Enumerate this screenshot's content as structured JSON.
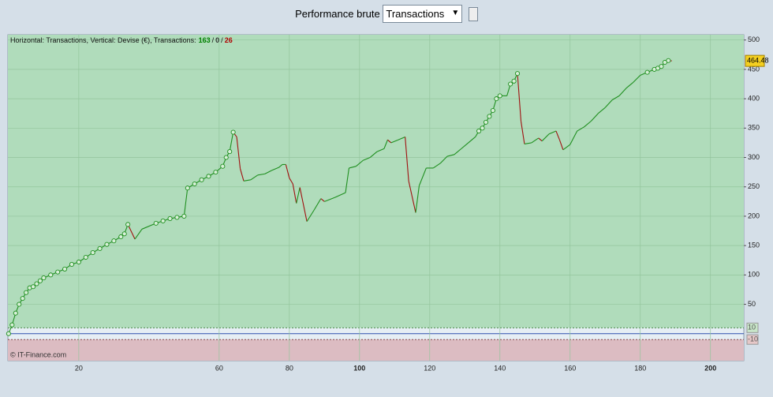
{
  "ui": {
    "label": "Performance brute",
    "select": "Transactions"
  },
  "chart_data": {
    "type": "line",
    "info_text": "Horizontal: Transactions, Vertical: Devise (€), Transactions:",
    "count_separator": "/",
    "counts": [
      {
        "value": 163,
        "color": "#008000"
      },
      {
        "value": 0,
        "color": "#333333"
      },
      {
        "value": 26,
        "color": "#b00000"
      }
    ],
    "credit": "© IT-Finance.com",
    "upper_band": 10,
    "lower_band": -10,
    "band_colors": {
      "upper": "#b0dcbb",
      "lower": "#dcbcc2",
      "middle": "#e6eef4"
    },
    "up_color": "#1f8f1f",
    "down_color": "#a01010",
    "xlim": [
      -0.2,
      209.5
    ],
    "ylim": [
      -46,
      509
    ],
    "xticks": [
      20,
      60,
      80,
      100,
      120,
      140,
      160,
      180,
      200
    ],
    "yticks": [
      50,
      100,
      150,
      200,
      250,
      300,
      350,
      400,
      450,
      500
    ],
    "grid": true,
    "x": [
      0,
      1,
      2,
      3,
      4,
      5,
      6,
      7,
      8,
      9,
      10,
      12,
      14,
      16,
      18,
      20,
      22,
      24,
      26,
      28,
      30,
      32,
      33,
      34,
      36,
      38,
      42,
      44,
      46,
      48,
      50,
      51,
      53,
      55,
      57,
      59,
      61,
      62,
      63,
      64,
      65,
      66,
      67,
      69,
      71,
      73,
      75,
      77,
      78,
      79,
      80,
      81,
      82,
      83,
      85,
      87,
      89,
      90,
      93,
      96,
      97,
      99,
      101,
      103,
      105,
      107,
      108,
      109,
      111,
      113,
      114,
      116,
      117,
      119,
      121,
      123,
      125,
      127,
      129,
      131,
      133,
      134,
      135,
      136,
      137,
      138,
      139,
      140,
      142,
      143,
      144,
      145,
      146,
      147,
      149,
      151,
      152,
      154,
      156,
      157,
      158,
      160,
      162,
      164,
      166,
      168,
      170,
      172,
      174,
      176,
      178,
      180,
      182,
      184,
      185,
      186,
      187,
      188,
      189
    ],
    "series": [
      {
        "name": "Transactions",
        "values": [
          0,
          15,
          35,
          50,
          60,
          70,
          78,
          80,
          85,
          90,
          95,
          100,
          105,
          110,
          118,
          122,
          130,
          138,
          145,
          152,
          158,
          165,
          170,
          186,
          161,
          178,
          188,
          192,
          196,
          198,
          200,
          248,
          255,
          262,
          268,
          275,
          285,
          300,
          310,
          343,
          335,
          281,
          260,
          262,
          270,
          272,
          278,
          283,
          288,
          288,
          265,
          255,
          222,
          249,
          191,
          210,
          230,
          225,
          232,
          240,
          282,
          285,
          295,
          300,
          310,
          315,
          330,
          325,
          330,
          335,
          260,
          206,
          252,
          282,
          282,
          290,
          302,
          305,
          315,
          325,
          335,
          345,
          350,
          360,
          370,
          380,
          400,
          405,
          405,
          425,
          430,
          443,
          362,
          323,
          325,
          333,
          328,
          340,
          345,
          330,
          313,
          322,
          345,
          352,
          362,
          375,
          385,
          398,
          405,
          418,
          428,
          440,
          445,
          450,
          452,
          455,
          462,
          465,
          464.48
        ]
      }
    ]
  }
}
